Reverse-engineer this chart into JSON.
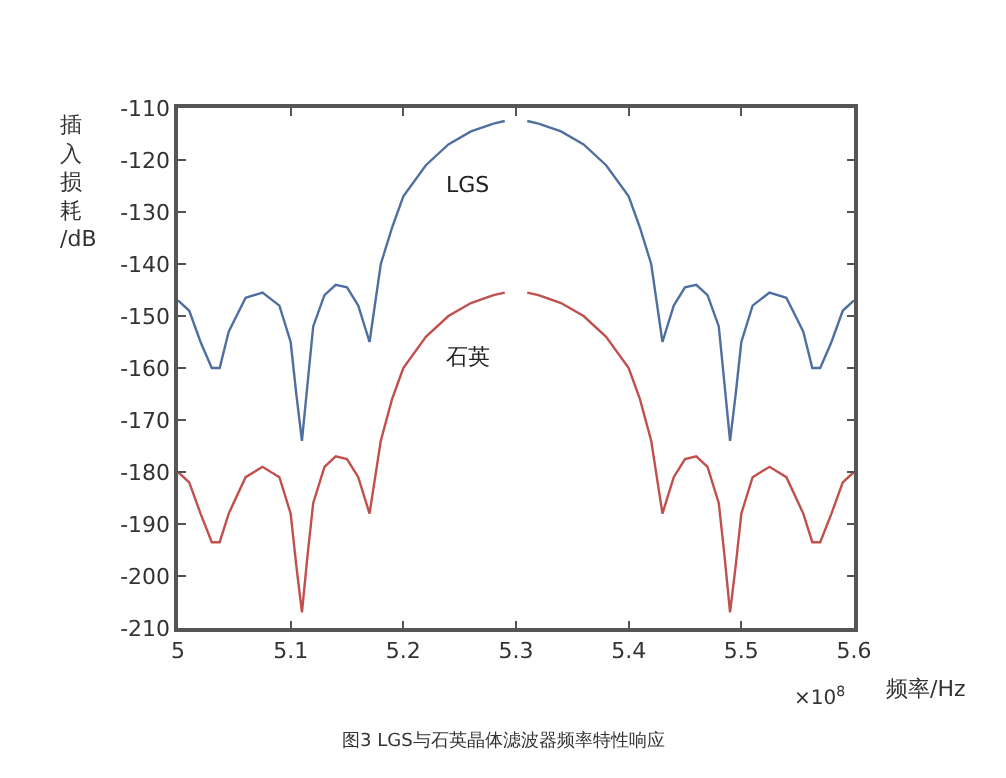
{
  "chart_data": {
    "type": "line",
    "xlabel": "频率/Hz",
    "ylabel": "插入损耗/dB",
    "annotations": [
      "×10$^{8}$",
      "图3 LGS与石英晶体滤波器频率特性响应"
    ],
    "x": [
      5.0,
      5.01,
      5.02,
      5.03,
      5.037,
      5.045,
      5.06,
      5.075,
      5.09,
      5.1,
      5.105,
      5.11,
      5.115,
      5.12,
      5.13,
      5.14,
      5.15,
      5.16,
      5.17,
      5.18,
      5.19,
      5.2,
      5.22,
      5.24,
      5.26,
      5.28,
      5.29,
      5.3,
      5.31,
      5.32,
      5.34,
      5.36,
      5.38,
      5.4,
      5.41,
      5.42,
      5.43,
      5.44,
      5.45,
      5.46,
      5.47,
      5.48,
      5.485,
      5.49,
      5.495,
      5.5,
      5.51,
      5.525,
      5.54,
      5.555,
      5.563,
      5.57,
      5.58,
      5.59,
      5.6
    ],
    "series": [
      {
        "name": "LGS",
        "color": "#4f6fa0",
        "values": [
          -147,
          -149,
          -155,
          -160,
          -160,
          -153,
          -146.5,
          -145.5,
          -148,
          -155,
          -165,
          -174,
          -163,
          -152,
          -146,
          -144,
          -144.5,
          -148,
          -155,
          -140,
          -133,
          -127,
          -121,
          -117,
          -114.5,
          -113,
          -112.5,
          null,
          -112.5,
          -113,
          -114.5,
          -117,
          -121,
          -127,
          -133,
          -140,
          -155,
          -148,
          -144.5,
          -144,
          -146,
          -152,
          -163,
          -174,
          -165,
          -155,
          -148,
          -145.5,
          -146.5,
          -153,
          -160,
          -160,
          -155,
          -149,
          -147
        ]
      },
      {
        "name": "石英",
        "color": "#c0504d",
        "values": [
          -180,
          -182,
          -188,
          -193.5,
          -193.5,
          -188,
          -181,
          -179,
          -181,
          -188,
          -198,
          -207,
          -196,
          -186,
          -179,
          -177,
          -177.5,
          -181,
          -188,
          -174,
          -166,
          -160,
          -154,
          -150,
          -147.5,
          -146,
          -145.5,
          null,
          -145.5,
          -146,
          -147.5,
          -150,
          -154,
          -160,
          -166,
          -174,
          -188,
          -181,
          -177.5,
          -177,
          -179,
          -186,
          -196,
          -207,
          -198,
          -188,
          -181,
          -179,
          -181,
          -188,
          -193.5,
          -193.5,
          -188,
          -182,
          -180
        ]
      }
    ],
    "xlim": [
      5.0,
      5.6
    ],
    "xticks": [
      {
        "value": 5.0,
        "label": "5"
      },
      5.1,
      5.2,
      5.3,
      5.4,
      5.5,
      5.6
    ],
    "ylim": [
      -210,
      -110
    ],
    "yticks": [
      -210,
      -200,
      -190,
      -180,
      -170,
      -160,
      -150,
      -140,
      -130,
      -120,
      -110
    ],
    "grid": false,
    "legend": false,
    "marker": "none",
    "line_style": "solid"
  }
}
